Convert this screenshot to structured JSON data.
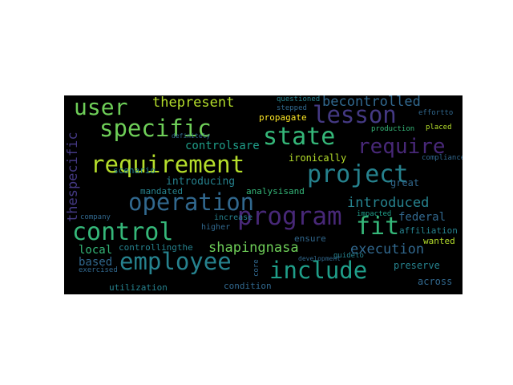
{
  "figure": {
    "type": "wordcloud",
    "background": "#000000",
    "palette": "viridis"
  },
  "words": [
    {
      "text": "operation",
      "color": "#31688e",
      "vertical": false
    },
    {
      "text": "program",
      "color": "#482878",
      "vertical": false
    },
    {
      "text": "requirement",
      "color": "#b5de2b",
      "vertical": false
    },
    {
      "text": "employee",
      "color": "#26828e",
      "vertical": false
    },
    {
      "text": "specific",
      "color": "#6ece58",
      "vertical": false
    },
    {
      "text": "control",
      "color": "#35b779",
      "vertical": false
    },
    {
      "text": "include",
      "color": "#1f9e89",
      "vertical": false
    },
    {
      "text": "state",
      "color": "#35b779",
      "vertical": false
    },
    {
      "text": "project",
      "color": "#26828e",
      "vertical": false
    },
    {
      "text": "user",
      "color": "#6ece58",
      "vertical": false
    },
    {
      "text": "lesson",
      "color": "#443983",
      "vertical": false
    },
    {
      "text": "fit",
      "color": "#35b779",
      "vertical": false
    },
    {
      "text": "require",
      "color": "#482878",
      "vertical": false
    },
    {
      "text": "execution",
      "color": "#31688e",
      "vertical": false
    },
    {
      "text": "introduced",
      "color": "#26828e",
      "vertical": false
    },
    {
      "text": "becontrolled",
      "color": "#31688e",
      "vertical": false
    },
    {
      "text": "thepresent",
      "color": "#b5de2b",
      "vertical": false
    },
    {
      "text": "shapingnasa",
      "color": "#6ece58",
      "vertical": false
    },
    {
      "text": "controlsare",
      "color": "#1f9e89",
      "vertical": false
    },
    {
      "text": "federal",
      "color": "#31688e",
      "vertical": false
    },
    {
      "text": "based",
      "color": "#31688e",
      "vertical": false
    },
    {
      "text": "local",
      "color": "#35b779",
      "vertical": false
    },
    {
      "text": "introducing",
      "color": "#26828e",
      "vertical": false
    },
    {
      "text": "ironically",
      "color": "#b5de2b",
      "vertical": false
    },
    {
      "text": "analysisand",
      "color": "#35b779",
      "vertical": false
    },
    {
      "text": "mandated",
      "color": "#26828e",
      "vertical": false
    },
    {
      "text": "great",
      "color": "#31688e",
      "vertical": false
    },
    {
      "text": "propagate",
      "color": "#fde725",
      "vertical": false
    },
    {
      "text": "scenario",
      "color": "#26828e",
      "vertical": false
    },
    {
      "text": "controllingthe",
      "color": "#26828e",
      "vertical": false
    },
    {
      "text": "utilization",
      "color": "#26828e",
      "vertical": false
    },
    {
      "text": "across",
      "color": "#31688e",
      "vertical": false
    },
    {
      "text": "preserve",
      "color": "#26828e",
      "vertical": false
    },
    {
      "text": "wanted",
      "color": "#b5de2b",
      "vertical": false
    },
    {
      "text": "affiliation",
      "color": "#26828e",
      "vertical": false
    },
    {
      "text": "ensure",
      "color": "#31688e",
      "vertical": false
    },
    {
      "text": "impacted",
      "color": "#1f9e89",
      "vertical": false
    },
    {
      "text": "condition",
      "color": "#31688e",
      "vertical": false
    },
    {
      "text": "increase",
      "color": "#26828e",
      "vertical": false
    },
    {
      "text": "higher",
      "color": "#31688e",
      "vertical": false
    },
    {
      "text": "questioned",
      "color": "#26828e",
      "vertical": false
    },
    {
      "text": "stepped",
      "color": "#31688e",
      "vertical": false
    },
    {
      "text": "definitely",
      "color": "#31688e",
      "vertical": false
    },
    {
      "text": "production",
      "color": "#35b779",
      "vertical": false
    },
    {
      "text": "placed",
      "color": "#b5de2b",
      "vertical": false
    },
    {
      "text": "compliance",
      "color": "#31688e",
      "vertical": false
    },
    {
      "text": "guideto",
      "color": "#26828e",
      "vertical": false
    },
    {
      "text": "development",
      "color": "#31688e",
      "vertical": false
    },
    {
      "text": "company",
      "color": "#31688e",
      "vertical": false
    },
    {
      "text": "exercised",
      "color": "#31688e",
      "vertical": false
    },
    {
      "text": "effortto",
      "color": "#31688e",
      "vertical": false
    },
    {
      "text": "thespecific",
      "color": "#443983",
      "vertical": true
    },
    {
      "text": "core",
      "color": "#31688e",
      "vertical": true
    }
  ]
}
